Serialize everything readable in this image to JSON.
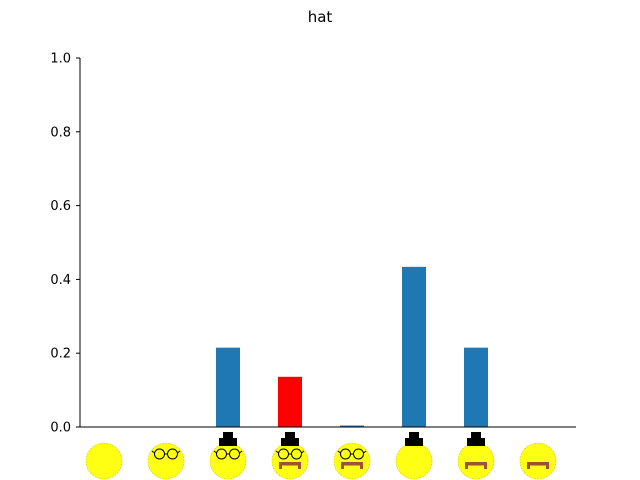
{
  "chart_data": {
    "type": "bar",
    "title": "hat",
    "xlabel": "",
    "ylabel": "",
    "ylim": [
      0,
      1.0
    ],
    "yticks": [
      "0.0",
      "0.2",
      "0.4",
      "0.6",
      "0.8",
      "1.0"
    ],
    "grid": false,
    "categories": [
      {
        "face": "plain",
        "hat": false,
        "glasses": false,
        "mustache": false
      },
      {
        "face": "glasses",
        "hat": false,
        "glasses": true,
        "mustache": false
      },
      {
        "face": "hat+glasses",
        "hat": true,
        "glasses": true,
        "mustache": false
      },
      {
        "face": "hat+glasses+mustache",
        "hat": true,
        "glasses": true,
        "mustache": true
      },
      {
        "face": "glasses+mustache",
        "hat": false,
        "glasses": true,
        "mustache": true
      },
      {
        "face": "hat",
        "hat": true,
        "glasses": false,
        "mustache": false
      },
      {
        "face": "hat+mustache",
        "hat": true,
        "glasses": false,
        "mustache": true
      },
      {
        "face": "mustache",
        "hat": false,
        "glasses": false,
        "mustache": true
      }
    ],
    "values": [
      0.0,
      0.0,
      0.215,
      0.136,
      0.004,
      0.434,
      0.215,
      0.0
    ],
    "highlight_index": 3,
    "colors": {
      "bar": "#1f77b4",
      "highlight": "#ff0000",
      "face": "#ffff14",
      "axis": "#000000",
      "hat": "#000000",
      "mustache": "#a0522d"
    }
  }
}
